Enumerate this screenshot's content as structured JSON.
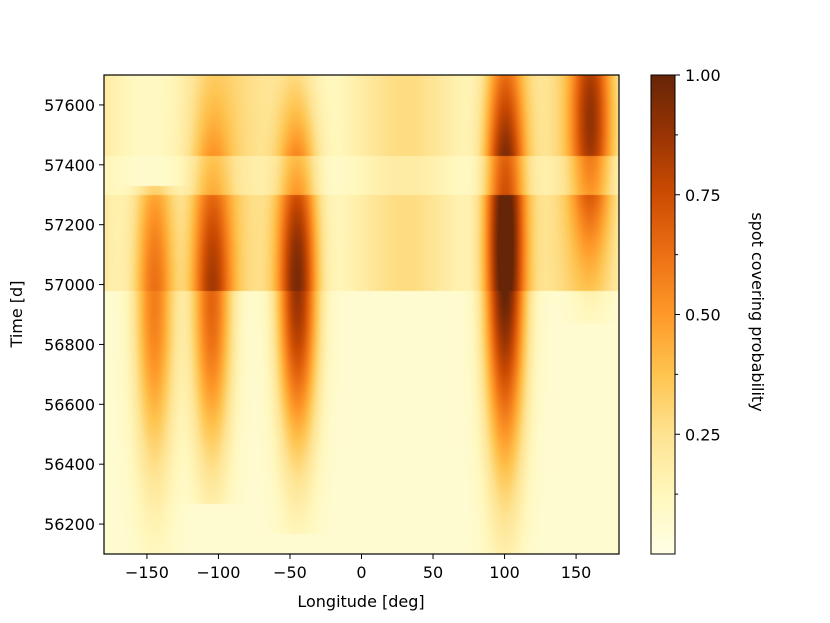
{
  "chart_data": {
    "type": "heatmap",
    "xlabel": "Longitude [deg]",
    "ylabel": "Time [d]",
    "xlim": [
      -180,
      180
    ],
    "ylim": [
      56100,
      57700
    ],
    "x_ticks": [
      -150,
      -100,
      -50,
      0,
      50,
      100,
      150
    ],
    "x_tick_labels": [
      "−150",
      "−100",
      "−50",
      "0",
      "50",
      "100",
      "150"
    ],
    "y_ticks": [
      56200,
      56400,
      56600,
      56800,
      57000,
      57200,
      57400,
      57600
    ],
    "y_tick_labels": [
      "56200",
      "56400",
      "56600",
      "56800",
      "57000",
      "57200",
      "57400",
      "57600"
    ],
    "colorbar": {
      "label": "spot covering probability",
      "range": [
        0.0,
        1.0
      ],
      "ticks": [
        0.25,
        0.5,
        0.75,
        1.0
      ],
      "tick_labels": [
        "0.25",
        "0.50",
        "0.75",
        "1.00"
      ],
      "minor_ticks": [
        0.125,
        0.375,
        0.625,
        0.875
      ],
      "colormap": "YlOrBr",
      "colors": [
        "#ffffe5",
        "#fff7bc",
        "#fee391",
        "#fec44f",
        "#fe9929",
        "#ec7014",
        "#cc4c02",
        "#993404",
        "#662506"
      ]
    },
    "grid": false,
    "features": [
      {
        "lon": -145,
        "t_start": 56150,
        "t_end": 57250,
        "peak_t": 56950,
        "peak": 0.52
      },
      {
        "lon": -105,
        "t_start": 56350,
        "t_end": 57700,
        "peak_t": 56950,
        "peak": 0.6
      },
      {
        "lon": -45,
        "t_start": 56250,
        "t_end": 57700,
        "peak_t": 57000,
        "peak": 0.82
      },
      {
        "lon": 100,
        "t_start": 56150,
        "t_end": 57700,
        "peak_t": 57130,
        "peak": 1.0
      },
      {
        "lon": 160,
        "t_start": 56950,
        "t_end": 57700,
        "peak_t": 57550,
        "peak": 0.62
      }
    ]
  }
}
